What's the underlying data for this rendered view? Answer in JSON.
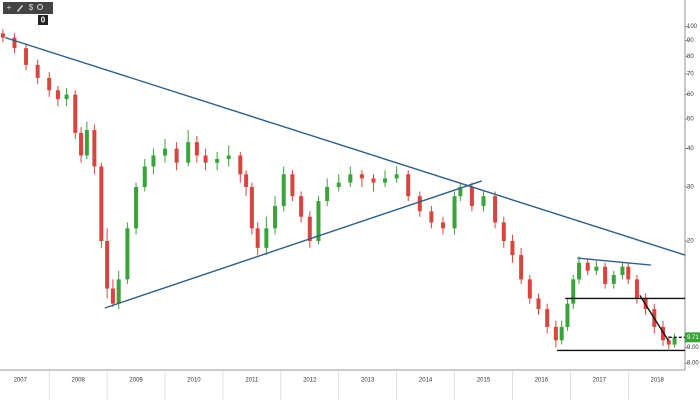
{
  "toolbar": {
    "buttons": [
      "+",
      "$"
    ],
    "badge": "0"
  },
  "chart_data": {
    "type": "candlestick",
    "log_scale": true,
    "xlim": [
      2007.15,
      2018.98
    ],
    "ylim": [
      7.6,
      122
    ],
    "xticks": [
      {
        "value": 2007.5,
        "label": "2007"
      },
      {
        "value": 2008.5,
        "label": "2008"
      },
      {
        "value": 2009.5,
        "label": "2009"
      },
      {
        "value": 2010.5,
        "label": "2010"
      },
      {
        "value": 2011.5,
        "label": "2011"
      },
      {
        "value": 2012.5,
        "label": "2012"
      },
      {
        "value": 2013.5,
        "label": "2013"
      },
      {
        "value": 2014.5,
        "label": "2014"
      },
      {
        "value": 2015.5,
        "label": "2015"
      },
      {
        "value": 2016.5,
        "label": "2016"
      },
      {
        "value": 2017.5,
        "label": "2017"
      },
      {
        "value": 2018.5,
        "label": "2018"
      }
    ],
    "yticks": [
      100,
      90,
      80,
      70,
      60,
      50,
      40,
      30,
      20,
      {
        "value": 9,
        "label": "9.00"
      },
      {
        "value": 8,
        "label": "8.00"
      }
    ],
    "up_color": "#3aa33a",
    "down_color": "#d8453f",
    "candles": {
      "x": [
        2007.2,
        2007.4,
        2007.6,
        2007.8,
        2008.0,
        2008.15,
        2008.3,
        2008.45,
        2008.55,
        2008.65,
        2008.78,
        2008.9,
        2009.0,
        2009.1,
        2009.2,
        2009.35,
        2009.5,
        2009.65,
        2009.8,
        2010.0,
        2010.2,
        2010.4,
        2010.55,
        2010.7,
        2010.9,
        2011.1,
        2011.3,
        2011.4,
        2011.5,
        2011.6,
        2011.75,
        2011.9,
        2012.05,
        2012.2,
        2012.35,
        2012.5,
        2012.65,
        2012.8,
        2013.0,
        2013.2,
        2013.4,
        2013.6,
        2013.8,
        2014.0,
        2014.2,
        2014.4,
        2014.6,
        2014.8,
        2015.0,
        2015.1,
        2015.3,
        2015.5,
        2015.7,
        2015.85,
        2016.0,
        2016.15,
        2016.3,
        2016.45,
        2016.6,
        2016.75,
        2016.85,
        2016.95,
        2017.05,
        2017.15,
        2017.3,
        2017.45,
        2017.6,
        2017.75,
        2017.9,
        2018.0,
        2018.15,
        2018.3,
        2018.45,
        2018.6,
        2018.7,
        2018.8
      ],
      "open": [
        95,
        92,
        85,
        75,
        68,
        62,
        58,
        60,
        45,
        38,
        46,
        35,
        20,
        14,
        12.5,
        15,
        22,
        30,
        35,
        38,
        40,
        36,
        42,
        38,
        36,
        37,
        38,
        33,
        30,
        22,
        19,
        22,
        26,
        33,
        28,
        24,
        20,
        27,
        30,
        31,
        33,
        32,
        31,
        32,
        33,
        28,
        25,
        23,
        22,
        28,
        30,
        26,
        28,
        23,
        20,
        18,
        15,
        13,
        12,
        10.5,
        9.5,
        10.5,
        12.5,
        15,
        17,
        16,
        16.5,
        14.5,
        15.5,
        16.5,
        15,
        13,
        12,
        10.5,
        9.5,
        9.2
      ],
      "high": [
        98,
        95,
        88,
        78,
        71,
        64,
        63,
        62,
        47,
        49,
        48,
        36,
        22,
        15,
        16,
        23,
        31,
        37,
        40,
        43,
        42,
        46,
        44,
        40,
        39,
        41,
        39,
        34,
        31,
        23,
        24,
        28,
        35,
        34,
        29,
        25,
        28,
        32,
        33,
        35,
        34,
        33,
        34,
        35,
        34,
        29,
        26,
        24,
        29,
        31,
        31,
        29,
        29,
        24,
        21,
        19,
        15.5,
        13.5,
        12.5,
        11,
        11,
        13,
        15.5,
        17.8,
        17.5,
        17.2,
        17,
        16,
        17,
        17,
        15.5,
        13.5,
        12.5,
        11,
        9.8,
        10
      ],
      "low": [
        89,
        82,
        72,
        65,
        59,
        55,
        55,
        43,
        36,
        37,
        33,
        19,
        13,
        12.2,
        12,
        14.5,
        21,
        29,
        33,
        36,
        34,
        35,
        36,
        34,
        34,
        35,
        31,
        28,
        21,
        18,
        18,
        21,
        25,
        27,
        23,
        19,
        19.5,
        26,
        29,
        30,
        30,
        29,
        30,
        31,
        27,
        24,
        22,
        21,
        21,
        27,
        25,
        25,
        22,
        19,
        17,
        14.5,
        12.5,
        11.5,
        10,
        9,
        9.2,
        10.2,
        12,
        14.5,
        15.5,
        15.5,
        14,
        14,
        15,
        14.5,
        12.5,
        11.5,
        10,
        9.1,
        8.9,
        9
      ],
      "close": [
        92,
        85,
        75,
        68,
        62,
        58,
        60,
        45,
        38,
        46,
        35,
        20,
        14,
        12.5,
        15,
        22,
        30,
        35,
        38,
        40,
        36,
        42,
        38,
        36,
        37,
        38,
        33,
        30,
        22,
        19,
        22,
        26,
        33,
        28,
        24,
        20,
        27,
        30,
        31,
        33,
        32,
        31,
        32,
        33,
        28,
        25,
        23,
        22,
        28,
        30,
        26,
        28,
        23,
        20,
        18,
        15,
        13,
        12,
        10.5,
        9.5,
        10.5,
        12.5,
        15,
        17,
        16,
        16.5,
        14.5,
        15.5,
        16.5,
        15,
        13,
        12,
        10.5,
        9.5,
        9.2,
        9.71
      ]
    },
    "trend_lines": [
      {
        "x": [
          2007.24,
          2018.98
        ],
        "y": [
          92,
          18.0
        ],
        "color": "#2f5f86",
        "dashed": false
      },
      {
        "x": [
          2008.96,
          2015.47
        ],
        "y": [
          12.1,
          31.4
        ],
        "color": "#2f5f86",
        "dashed": false
      },
      {
        "x": [
          2017.12,
          2018.39
        ],
        "y": [
          17.6,
          16.7
        ],
        "color": "#2f5f86",
        "dashed": false
      },
      {
        "x": [
          2016.91,
          2018.98
        ],
        "y": [
          13.0,
          13.0
        ],
        "color": "#111",
        "dashed": false
      },
      {
        "x": [
          2016.77,
          2018.98
        ],
        "y": [
          8.8,
          8.8
        ],
        "color": "#111",
        "dashed": false
      },
      {
        "x": [
          2018.2,
          2018.69
        ],
        "y": [
          13.3,
          9.49
        ],
        "color": "#111",
        "dashed": false
      },
      {
        "x": [
          2018.7,
          2018.98
        ],
        "y": [
          9.71,
          9.71
        ],
        "color": "#111",
        "dashed": true
      }
    ],
    "last_price": 9.71,
    "last_price_color": "#3aa33a"
  }
}
